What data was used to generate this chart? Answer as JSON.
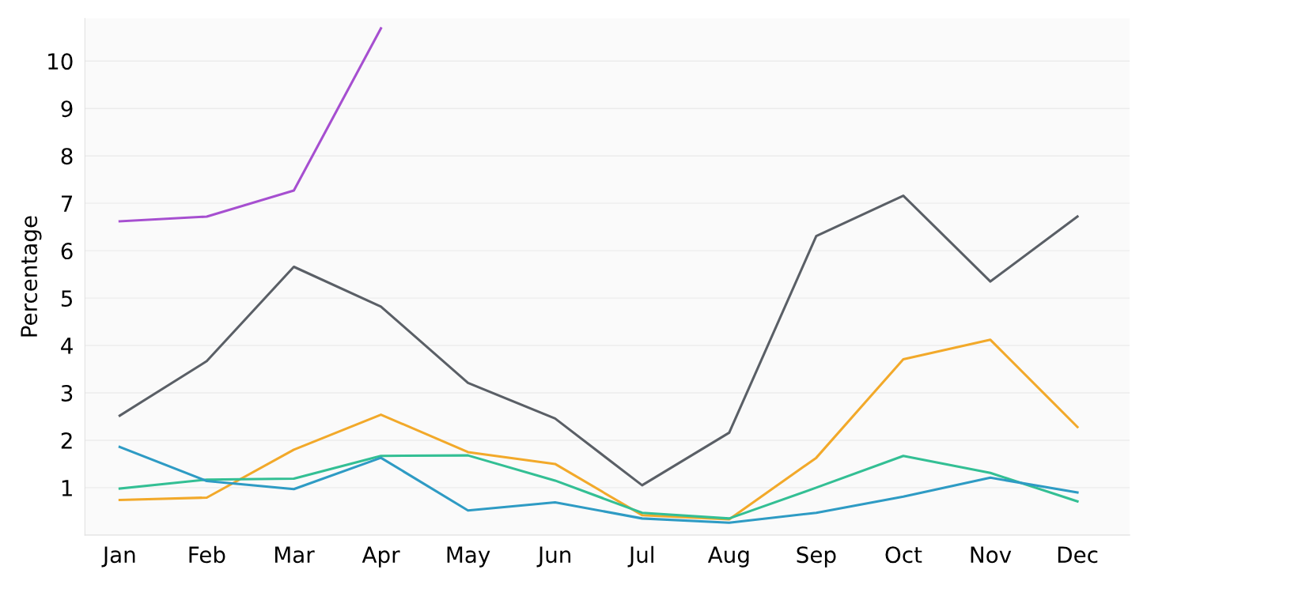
{
  "chart_data": {
    "type": "line",
    "ylabel": "Percentage",
    "categories": [
      "Jan",
      "Feb",
      "Mar",
      "Apr",
      "May",
      "Jun",
      "Jul",
      "Aug",
      "Sep",
      "Oct",
      "Nov",
      "Dec"
    ],
    "series": [
      {
        "color": "#a64fd0",
        "values": [
          6.62,
          6.72,
          7.27,
          10.69,
          null,
          null,
          null,
          null,
          null,
          null,
          null,
          null
        ]
      },
      {
        "color": "#5a5f66",
        "values": [
          2.52,
          3.67,
          5.66,
          4.82,
          3.21,
          2.46,
          1.05,
          2.16,
          6.31,
          7.16,
          5.35,
          6.72
        ]
      },
      {
        "color": "#f2a92a",
        "values": [
          0.74,
          0.79,
          1.8,
          2.54,
          1.75,
          1.5,
          0.42,
          0.33,
          1.63,
          3.71,
          4.12,
          2.28
        ]
      },
      {
        "color": "#33bf94",
        "values": [
          0.98,
          1.17,
          1.19,
          1.67,
          1.68,
          1.15,
          0.47,
          0.35,
          1.0,
          1.67,
          1.31,
          0.71
        ]
      },
      {
        "color": "#2e9bc4",
        "values": [
          1.86,
          1.14,
          0.97,
          1.63,
          0.52,
          0.69,
          0.35,
          0.26,
          0.47,
          0.81,
          1.21,
          0.9
        ]
      }
    ],
    "ylim": [
      0,
      10.9
    ],
    "yticks": [
      1,
      2,
      3,
      4,
      5,
      6,
      7,
      8,
      9,
      10
    ],
    "grid": "y",
    "marker": "none",
    "line_style": "solid"
  }
}
